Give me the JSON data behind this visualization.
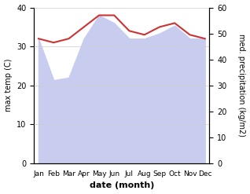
{
  "months": [
    "Jan",
    "Feb",
    "Mar",
    "Apr",
    "May",
    "Jun",
    "Jul",
    "Aug",
    "Sep",
    "Oct",
    "Nov",
    "Dec"
  ],
  "month_positions": [
    0,
    1,
    2,
    3,
    4,
    5,
    6,
    7,
    8,
    9,
    10,
    11
  ],
  "temp_max": [
    32,
    31,
    32,
    35,
    38,
    38,
    34,
    33,
    35,
    36,
    33,
    32
  ],
  "precipitation": [
    48,
    32,
    33,
    48,
    57,
    54,
    48,
    48,
    50,
    53,
    48,
    48
  ],
  "temp_color": "#cc3333",
  "precip_fill_color": "#c8cdf0",
  "ylim_left": [
    0,
    40
  ],
  "ylim_right": [
    0,
    60
  ],
  "ylabel_left": "max temp (C)",
  "ylabel_right": "med. precipitation (kg/m2)",
  "xlabel": "date (month)",
  "bg_color": "#ffffff",
  "grid_color": "#cccccc"
}
